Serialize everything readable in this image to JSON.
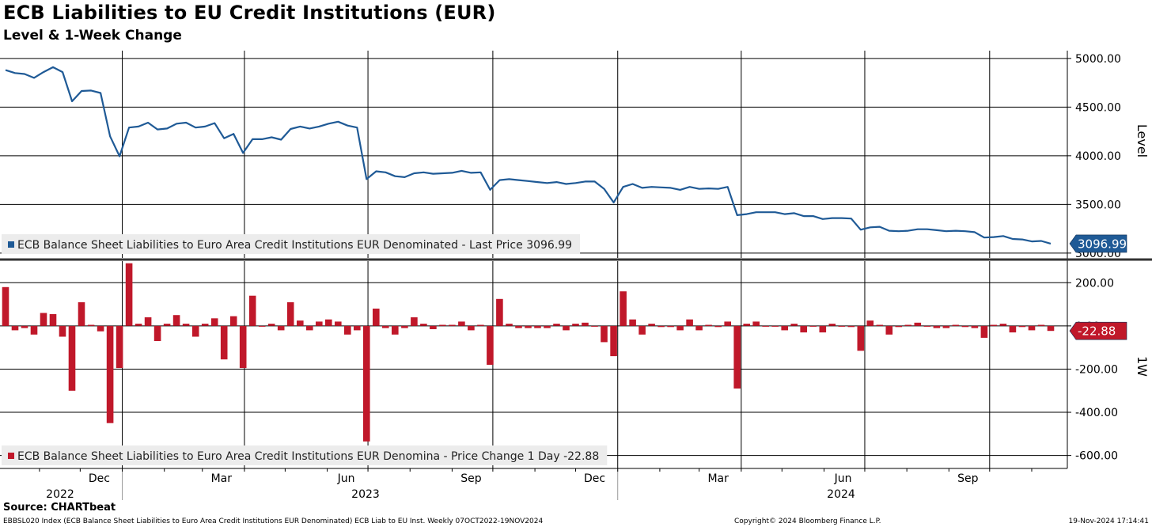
{
  "title": "ECB Liabilities to EU Credit Institutions (EUR)",
  "subtitle": "Level & 1-Week Change",
  "source": "Source: CHARTbeat",
  "footer": {
    "left": "EBBSL020 Index (ECB Balance Sheet Liabilities to Euro Area Credit Institutions EUR Denominated) ECB Liab to EU Inst.  Weekly 07OCT2022-19NOV2024",
    "middle": "Copyright© 2024 Bloomberg Finance L.P.",
    "right": "19-Nov-2024 17:14:41"
  },
  "colors": {
    "level_line": "#1f5a96",
    "change_bar": "#c0182a",
    "level_tag": "#1f5a96",
    "change_tag": "#c0182a"
  },
  "chart_data": [
    {
      "type": "line",
      "ylabel": "Level",
      "ylim": [
        2950,
        5080
      ],
      "yticks": [
        "5000.00",
        "4500.00",
        "4000.00",
        "3500.00",
        "3000.00"
      ],
      "grid": true,
      "legend": "ECB Balance Sheet Liabilities to Euro Area Credit Institutions EUR Denominated - Last Price 3096.99",
      "last_value_label": "3096.99",
      "x_start": "2022-10-07",
      "x_step_days": 7,
      "series": [
        {
          "name": "ECB Balance Sheet Liabilities to Euro Area Credit Institutions EUR Denominated",
          "values": [
            4880,
            4850,
            4840,
            4800,
            4860,
            4910,
            4860,
            4560,
            4665,
            4670,
            4645,
            4200,
            3995,
            4290,
            4300,
            4340,
            4270,
            4280,
            4330,
            4340,
            4290,
            4300,
            4335,
            4180,
            4225,
            4030,
            4170,
            4170,
            4190,
            4165,
            4275,
            4300,
            4280,
            4300,
            4330,
            4350,
            4310,
            4290,
            3760,
            3840,
            3830,
            3790,
            3780,
            3820,
            3830,
            3815,
            3820,
            3825,
            3845,
            3825,
            3830,
            3650,
            3750,
            3760,
            3750,
            3740,
            3730,
            3720,
            3730,
            3710,
            3720,
            3735,
            3735,
            3660,
            3520,
            3680,
            3710,
            3670,
            3680,
            3675,
            3670,
            3650,
            3680,
            3660,
            3665,
            3660,
            3680,
            3390,
            3400,
            3420,
            3420,
            3420,
            3400,
            3410,
            3380,
            3380,
            3350,
            3360,
            3360,
            3355,
            3240,
            3265,
            3270,
            3230,
            3225,
            3230,
            3245,
            3245,
            3235,
            3225,
            3230,
            3225,
            3215,
            3160,
            3165,
            3175,
            3145,
            3140,
            3120,
            3125,
            3097
          ]
        }
      ]
    },
    {
      "type": "bar",
      "ylabel": "1W",
      "ylim": [
        -660,
        300
      ],
      "yticks": [
        "200.00",
        "0.00",
        "-200.00",
        "-400.00",
        "-600.00"
      ],
      "grid": true,
      "legend": "ECB Balance Sheet Liabilities to Euro Area Credit Institutions EUR Denomina - Price Change 1 Day -22.88",
      "last_value_label": "-22.88",
      "x_start": "2022-10-07",
      "x_step_days": 7,
      "series": [
        {
          "name": "ECB Balance Sheet Liabilities to Euro Area Credit Institutions EUR Denomina - Price Change 1 Day",
          "values": [
            180,
            -20,
            -10,
            -40,
            60,
            55,
            -50,
            -300,
            110,
            5,
            -25,
            -450,
            -195,
            290,
            10,
            40,
            -70,
            10,
            50,
            10,
            -50,
            10,
            35,
            -155,
            45,
            -195,
            140,
            0,
            10,
            -20,
            110,
            25,
            -20,
            20,
            30,
            20,
            -40,
            -20,
            -535,
            80,
            -10,
            -40,
            -10,
            40,
            10,
            -15,
            5,
            5,
            20,
            -20,
            5,
            -180,
            125,
            10,
            -10,
            -10,
            -10,
            -10,
            10,
            -20,
            10,
            15,
            0,
            -75,
            -140,
            160,
            30,
            -40,
            10,
            -5,
            -5,
            -20,
            30,
            -20,
            5,
            -5,
            20,
            -290,
            10,
            20,
            0,
            0,
            -20,
            10,
            -30,
            0,
            -30,
            10,
            0,
            -5,
            -115,
            25,
            5,
            -40,
            -5,
            5,
            15,
            0,
            -10,
            -10,
            5,
            -5,
            -10,
            -55,
            5,
            10,
            -30,
            -5,
            -20,
            5,
            -23
          ]
        }
      ]
    }
  ],
  "x_axis": {
    "month_labels": [
      "Dec",
      "Mar",
      "Jun",
      "Sep",
      "Dec",
      "Mar",
      "Jun",
      "Sep"
    ],
    "year_labels": [
      "2022",
      "2023",
      "2024"
    ]
  }
}
